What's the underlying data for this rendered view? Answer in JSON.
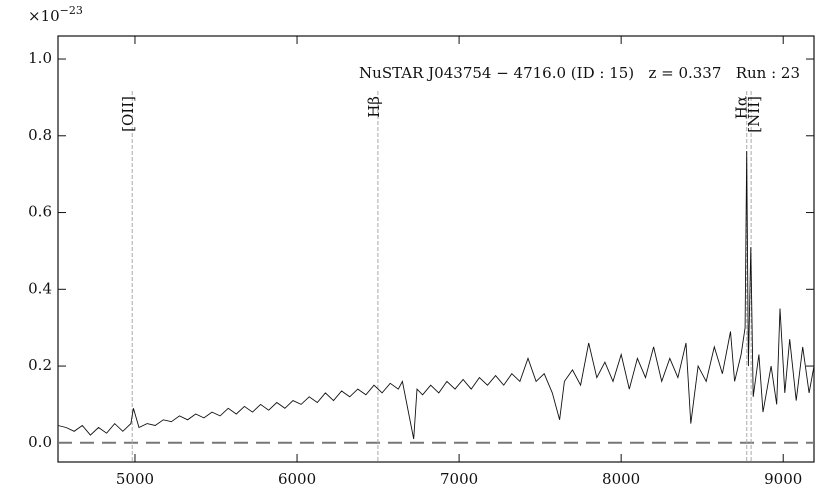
{
  "chart_data": {
    "type": "line",
    "annotation": "NuSTAR J043754 − 4716.0 (ID : 15)   z = 0.337   Run : 23",
    "y_multiplier": {
      "base": "×10",
      "exponent": "−23"
    },
    "xlim": [
      4525,
      9190
    ],
    "ylim": [
      -0.05,
      1.06
    ],
    "xticks": [
      5000,
      6000,
      7000,
      8000,
      9000
    ],
    "yticks": [
      {
        "value": 0,
        "label": "0.0"
      },
      0.2,
      0.4,
      0.6,
      0.8,
      {
        "value": 1,
        "label": "1.0"
      }
    ],
    "reference_line": 0,
    "emission_lines": [
      {
        "label": "[OII]",
        "x": 4983
      },
      {
        "label": "Hβ",
        "x": 6499
      },
      {
        "label": "Hα",
        "x": 8775
      },
      {
        "label": "[NII]",
        "x": 8802
      }
    ],
    "series": [
      {
        "color": "#111111",
        "x": [
          4525,
          4575,
          4625,
          4675,
          4725,
          4775,
          4825,
          4875,
          4925,
          4975,
          4990,
          5025,
          5075,
          5125,
          5175,
          5225,
          5275,
          5325,
          5375,
          5425,
          5475,
          5525,
          5575,
          5625,
          5675,
          5725,
          5775,
          5825,
          5875,
          5925,
          5975,
          6025,
          6075,
          6125,
          6175,
          6225,
          6275,
          6325,
          6375,
          6425,
          6475,
          6525,
          6575,
          6625,
          6650,
          6720,
          6740,
          6775,
          6825,
          6875,
          6925,
          6975,
          7025,
          7075,
          7125,
          7175,
          7225,
          7275,
          7325,
          7375,
          7425,
          7475,
          7525,
          7575,
          7620,
          7650,
          7700,
          7750,
          7800,
          7850,
          7900,
          7950,
          8000,
          8050,
          8100,
          8150,
          8200,
          8250,
          8300,
          8350,
          8400,
          8430,
          8475,
          8525,
          8575,
          8625,
          8675,
          8700,
          8740,
          8765,
          8775,
          8785,
          8800,
          8815,
          8850,
          8875,
          8925,
          8960,
          8980,
          9010,
          9040,
          9080,
          9120,
          9160,
          9190
        ],
        "values": [
          0.045,
          0.04,
          0.03,
          0.045,
          0.02,
          0.04,
          0.025,
          0.05,
          0.03,
          0.05,
          0.09,
          0.04,
          0.05,
          0.045,
          0.06,
          0.055,
          0.07,
          0.06,
          0.075,
          0.065,
          0.08,
          0.07,
          0.09,
          0.075,
          0.095,
          0.08,
          0.1,
          0.085,
          0.105,
          0.09,
          0.11,
          0.1,
          0.12,
          0.105,
          0.13,
          0.11,
          0.135,
          0.12,
          0.14,
          0.125,
          0.15,
          0.13,
          0.155,
          0.14,
          0.16,
          0.01,
          0.14,
          0.125,
          0.15,
          0.13,
          0.16,
          0.14,
          0.165,
          0.14,
          0.17,
          0.15,
          0.175,
          0.15,
          0.18,
          0.16,
          0.22,
          0.16,
          0.18,
          0.13,
          0.06,
          0.16,
          0.19,
          0.15,
          0.26,
          0.17,
          0.21,
          0.16,
          0.23,
          0.14,
          0.22,
          0.17,
          0.25,
          0.16,
          0.22,
          0.17,
          0.26,
          0.05,
          0.2,
          0.16,
          0.25,
          0.18,
          0.29,
          0.16,
          0.23,
          0.3,
          0.76,
          0.2,
          0.51,
          0.12,
          0.23,
          0.08,
          0.2,
          0.1,
          0.35,
          0.13,
          0.27,
          0.11,
          0.25,
          0.13,
          0.2
        ]
      }
    ]
  }
}
